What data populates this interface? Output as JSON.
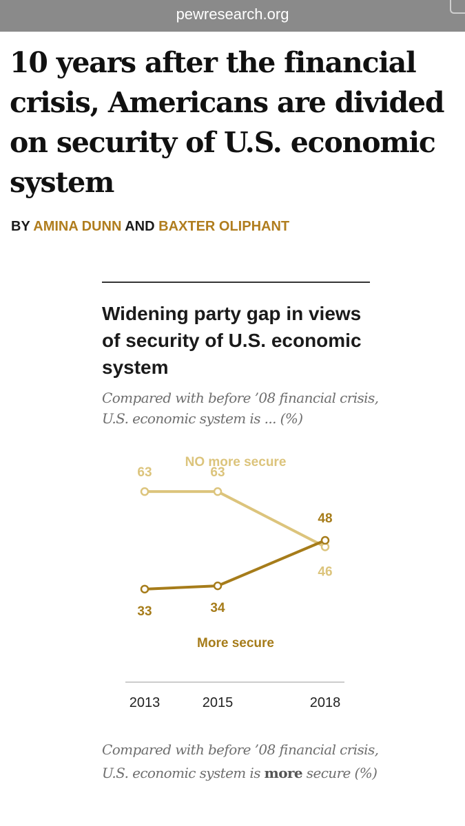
{
  "browser": {
    "url": "pewresearch.org"
  },
  "article": {
    "headline": "10 years after the financial crisis, Americans are divided on security of U.S. economic system",
    "byline_prefix": "BY",
    "author1": "AMINA DUNN",
    "byline_and": "AND",
    "author2": "BAXTER OLIPHANT"
  },
  "footnote": {
    "line1": "Compared with before ’08 financial crisis, U.S. economic system is",
    "bold": "more",
    "line2_rest": "secure (%)"
  },
  "colors": {
    "accent": "#b07d1e",
    "no_more_secure": "#dcc47c",
    "more_secure": "#a67c1a",
    "text": "#1a1a1a",
    "muted": "#6e6e6e"
  },
  "chart_data": {
    "type": "line",
    "title": "Widening party gap in views of security of U.S. economic system",
    "subtitle": "Compared with before ’08 financial crisis, U.S. economic system is ... (%)",
    "x": [
      "2013",
      "2015",
      "2018"
    ],
    "series": [
      {
        "name": "NO more secure",
        "values": [
          63,
          63,
          46
        ],
        "labels": [
          "63",
          "63",
          "46"
        ]
      },
      {
        "name": "More secure",
        "values": [
          33,
          34,
          48
        ],
        "labels": [
          "33",
          "34",
          "48"
        ]
      }
    ],
    "ylim": [
      30,
      66
    ],
    "grid": false,
    "xlabel": "",
    "ylabel": ""
  }
}
